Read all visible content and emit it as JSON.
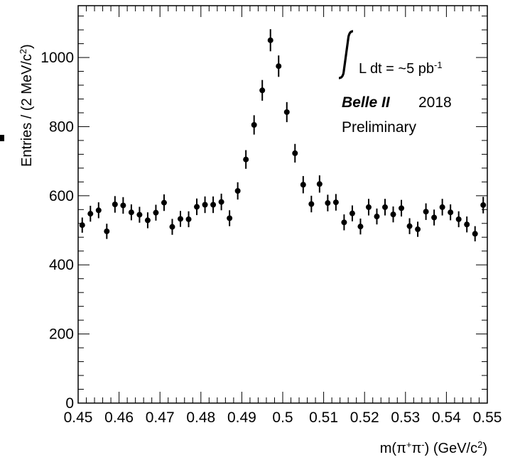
{
  "chart_data": {
    "type": "scatter",
    "title": "",
    "xlabel": "m(π⁺π⁻) (GeV/c²)",
    "ylabel": "Entries / (2 MeV/c²)",
    "xlim": [
      0.45,
      0.55
    ],
    "ylim": [
      0,
      1150
    ],
    "grid": false,
    "x_ticks": [
      "0.45",
      "0.46",
      "0.47",
      "0.48",
      "0.49",
      "0.5",
      "0.51",
      "0.52",
      "0.53",
      "0.54",
      "0.55"
    ],
    "y_ticks": [
      "0",
      "200",
      "400",
      "600",
      "800",
      "1000"
    ],
    "annotations": {
      "luminosity": "L dt = ~5 pb",
      "luminosity_sup": "-1",
      "experiment": "Belle II",
      "year": "2018",
      "status": "Preliminary"
    },
    "series": [
      {
        "x": [
          0.451,
          0.453,
          0.455,
          0.457,
          0.459,
          0.461,
          0.463,
          0.465,
          0.467,
          0.469,
          0.471,
          0.473,
          0.475,
          0.477,
          0.479,
          0.481,
          0.483,
          0.485,
          0.487,
          0.489,
          0.491,
          0.493,
          0.495,
          0.497,
          0.499,
          0.501,
          0.503,
          0.505,
          0.507,
          0.509,
          0.511,
          0.513,
          0.515,
          0.517,
          0.519,
          0.521,
          0.523,
          0.525,
          0.527,
          0.529,
          0.531,
          0.533,
          0.535,
          0.537,
          0.539,
          0.541,
          0.543,
          0.545,
          0.547,
          0.549
        ],
        "y": [
          515,
          548,
          558,
          497,
          575,
          572,
          552,
          545,
          529,
          551,
          580,
          510,
          533,
          532,
          568,
          574,
          574,
          582,
          535,
          614,
          705,
          805,
          905,
          1050,
          975,
          842,
          723,
          632,
          576,
          634,
          579,
          581,
          523,
          549,
          511,
          567,
          540,
          567,
          546,
          564,
          512,
          503,
          554,
          537,
          567,
          552,
          532,
          517,
          490,
          573
        ],
        "err": [
          22,
          23,
          23,
          22,
          24,
          24,
          23,
          23,
          23,
          23,
          24,
          23,
          23,
          23,
          24,
          24,
          24,
          24,
          23,
          25,
          27,
          28,
          30,
          32,
          31,
          29,
          27,
          25,
          24,
          25,
          24,
          24,
          23,
          23,
          23,
          24,
          23,
          24,
          23,
          24,
          23,
          22,
          24,
          23,
          24,
          23,
          23,
          23,
          22,
          24
        ]
      }
    ]
  }
}
